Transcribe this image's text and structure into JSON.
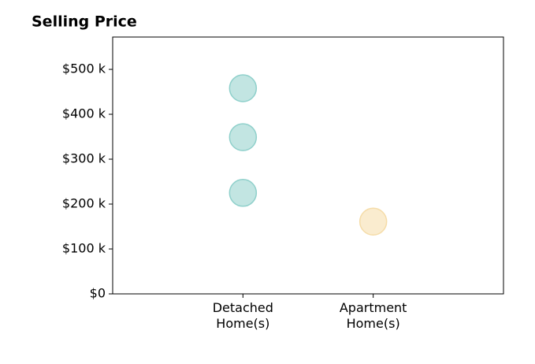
{
  "chart_data": {
    "type": "scatter",
    "title": "Selling Price",
    "categories": [
      "Detached Home(s)",
      "Apartment Home(s)"
    ],
    "x": [
      "Detached Home(s)",
      "Detached Home(s)",
      "Detached Home(s)",
      "Apartment Home(s)"
    ],
    "values": [
      458,
      349,
      225,
      161
    ],
    "colors": [
      "#8fd0cb",
      "#8fd0cb",
      "#8fd0cb",
      "#f5dca8"
    ],
    "ylim": [
      0,
      572
    ],
    "yticks": [
      {
        "value": 0,
        "label": "$0"
      },
      {
        "value": 100,
        "label": "$100 k"
      },
      {
        "value": 200,
        "label": "$200 k"
      },
      {
        "value": 300,
        "label": "$300 k"
      },
      {
        "value": 400,
        "label": "$400 k"
      },
      {
        "value": 500,
        "label": "$500 k"
      }
    ]
  }
}
